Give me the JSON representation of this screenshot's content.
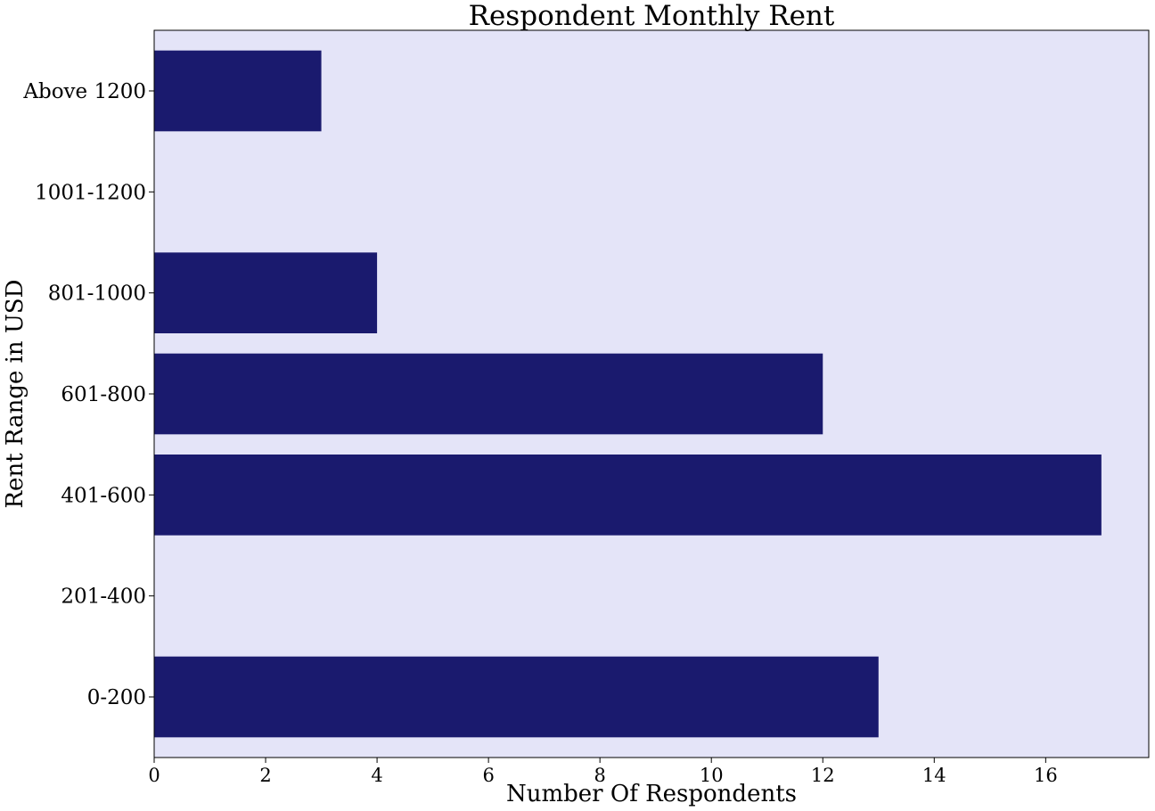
{
  "chart_data": {
    "type": "bar",
    "orientation": "horizontal",
    "title": "Respondent Monthly Rent",
    "xlabel": "Number Of Respondents",
    "ylabel": "Rent Range in USD",
    "categories": [
      "0-200",
      "201-400",
      "401-600",
      "601-800",
      "801-1000",
      "1001-1200",
      "Above 1200"
    ],
    "values": [
      13,
      0,
      17,
      12,
      4,
      0,
      3
    ],
    "xlim": [
      0,
      17.85
    ],
    "xticks": [
      "0",
      "2",
      "4",
      "6",
      "8",
      "10",
      "12",
      "14",
      "16"
    ],
    "grid": false,
    "legend": "none",
    "colors": {
      "plot_background": "#e4e4f8",
      "bar": "#1a1a6e",
      "axis": "#000000"
    }
  }
}
